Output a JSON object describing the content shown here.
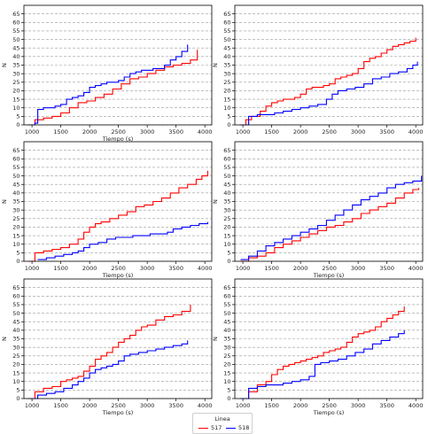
{
  "legend": {
    "title": "Linea",
    "entries": [
      {
        "name": "517",
        "color": "#ff0000"
      },
      {
        "name": "518",
        "color": "#0000ff"
      }
    ]
  },
  "chart_data": [
    {
      "type": "line",
      "xlabel": "Tiempo (s)",
      "ylabel": "N",
      "xlim": [
        860,
        4120
      ],
      "ylim": [
        0,
        70
      ],
      "xticks": [
        1000,
        1500,
        2000,
        2500,
        3000,
        3500,
        4000
      ],
      "yticks": [
        0,
        5,
        10,
        15,
        20,
        25,
        30,
        35,
        40,
        45,
        50,
        55,
        60,
        65
      ],
      "grid": "y-dashed",
      "series": [
        {
          "name": "517",
          "color": "#ff0000",
          "x": [
            920,
            1050,
            1200,
            1350,
            1500,
            1650,
            1800,
            1950,
            2100,
            2250,
            2400,
            2550,
            2700,
            2850,
            3000,
            3150,
            3300,
            3450,
            3600,
            3750,
            3870
          ],
          "y": [
            0,
            3,
            4,
            5,
            7,
            10,
            13,
            14,
            16,
            18,
            21,
            24,
            27,
            28,
            30,
            32,
            34,
            35,
            36,
            38,
            44
          ]
        },
        {
          "name": "518",
          "color": "#0000ff",
          "x": [
            960,
            1050,
            1100,
            1200,
            1300,
            1400,
            1500,
            1600,
            1700,
            1800,
            1900,
            2000,
            2100,
            2200,
            2300,
            2400,
            2500,
            2600,
            2700,
            2800,
            2900,
            3000,
            3100,
            3200,
            3300,
            3400,
            3500,
            3600,
            3700
          ],
          "y": [
            0,
            1,
            9,
            10,
            10,
            11,
            12,
            15,
            16,
            17,
            19,
            22,
            23,
            24,
            25,
            25,
            26,
            28,
            30,
            31,
            32,
            32,
            33,
            33,
            35,
            38,
            40,
            43,
            47
          ]
        }
      ]
    },
    {
      "type": "line",
      "xlabel": "",
      "ylabel": "N",
      "xlim": [
        860,
        4120
      ],
      "ylim": [
        0,
        70
      ],
      "xticks": [
        1000,
        1500,
        2000,
        2500,
        3000,
        3500,
        4000
      ],
      "yticks": [
        0,
        5,
        10,
        15,
        20,
        25,
        30,
        35,
        40,
        45,
        50,
        55,
        60,
        65
      ],
      "grid": "y-dashed",
      "series": [
        {
          "name": "517",
          "color": "#ff0000",
          "x": [
            950,
            1050,
            1150,
            1300,
            1400,
            1500,
            1600,
            1700,
            1800,
            1900,
            2000,
            2100,
            2200,
            2400,
            2500,
            2600,
            2700,
            2800,
            2900,
            3000,
            3100,
            3200,
            3300,
            3400,
            3500,
            3600,
            3700,
            3800,
            3900,
            4000
          ],
          "y": [
            0,
            3,
            5,
            8,
            11,
            13,
            14,
            15,
            15,
            16,
            18,
            21,
            22,
            23,
            24,
            27,
            28,
            29,
            30,
            33,
            37,
            39,
            40,
            42,
            44,
            46,
            47,
            48,
            49,
            51
          ]
        },
        {
          "name": "518",
          "color": "#0000ff",
          "x": [
            960,
            1100,
            1250,
            1400,
            1550,
            1700,
            1850,
            2000,
            2150,
            2300,
            2450,
            2550,
            2650,
            2800,
            2950,
            3100,
            3250,
            3400,
            3550,
            3700,
            3850,
            3950,
            4030
          ],
          "y": [
            0,
            5,
            6,
            6,
            7,
            8,
            9,
            10,
            11,
            12,
            15,
            18,
            20,
            21,
            22,
            24,
            27,
            28,
            30,
            31,
            33,
            35,
            37
          ]
        }
      ]
    },
    {
      "type": "line",
      "xlabel": "Tiempo (s)",
      "ylabel": "N",
      "xlim": [
        860,
        4120
      ],
      "ylim": [
        0,
        70
      ],
      "xticks": [
        1000,
        1500,
        2000,
        2500,
        3000,
        3500,
        4000
      ],
      "yticks": [
        0,
        5,
        10,
        15,
        20,
        25,
        30,
        35,
        40,
        45,
        50,
        55,
        60,
        65
      ],
      "grid": "y-dashed",
      "series": [
        {
          "name": "517",
          "color": "#ff0000",
          "x": [
            930,
            1050,
            1200,
            1350,
            1500,
            1650,
            1800,
            1900,
            2000,
            2100,
            2200,
            2350,
            2500,
            2650,
            2800,
            2950,
            3100,
            3250,
            3400,
            3550,
            3700,
            3850,
            3950,
            4050
          ],
          "y": [
            0,
            5,
            6,
            7,
            8,
            10,
            13,
            17,
            20,
            22,
            23,
            25,
            27,
            29,
            32,
            33,
            35,
            37,
            40,
            43,
            45,
            48,
            50,
            53
          ]
        },
        {
          "name": "518",
          "color": "#0000ff",
          "x": [
            1100,
            1250,
            1400,
            1550,
            1700,
            1800,
            1900,
            2000,
            2150,
            2300,
            2450,
            2600,
            2750,
            2900,
            3050,
            3200,
            3350,
            3450,
            3600,
            3750,
            3900,
            4050
          ],
          "y": [
            1,
            2,
            3,
            4,
            5,
            6,
            8,
            10,
            11,
            13,
            14,
            14,
            15,
            15,
            16,
            16,
            17,
            19,
            20,
            21,
            22,
            23
          ]
        }
      ]
    },
    {
      "type": "line",
      "xlabel": "Tiempo (s)",
      "ylabel": "N",
      "xlim": [
        860,
        4120
      ],
      "ylim": [
        0,
        70
      ],
      "xticks": [
        1000,
        1500,
        2000,
        2500,
        3000,
        3500,
        4000
      ],
      "yticks": [
        0,
        5,
        10,
        15,
        20,
        25,
        30,
        35,
        40,
        45,
        50,
        55,
        60,
        65
      ],
      "grid": "y-dashed",
      "series": [
        {
          "name": "517",
          "color": "#ff0000",
          "x": [
            950,
            1100,
            1250,
            1400,
            1550,
            1700,
            1850,
            2000,
            2150,
            2300,
            2450,
            2600,
            2750,
            2900,
            3050,
            3200,
            3350,
            3500,
            3650,
            3800,
            3950,
            4050
          ],
          "y": [
            0,
            2,
            3,
            5,
            8,
            10,
            12,
            14,
            16,
            18,
            20,
            21,
            23,
            25,
            28,
            30,
            32,
            34,
            37,
            40,
            42,
            43
          ]
        },
        {
          "name": "518",
          "color": "#0000ff",
          "x": [
            960,
            1100,
            1250,
            1400,
            1550,
            1700,
            1850,
            2000,
            2150,
            2300,
            2450,
            2600,
            2750,
            2900,
            3050,
            3200,
            3350,
            3500,
            3650,
            3800,
            3950,
            4100
          ],
          "y": [
            1,
            3,
            6,
            9,
            11,
            13,
            15,
            17,
            19,
            21,
            24,
            27,
            30,
            33,
            36,
            38,
            40,
            43,
            45,
            46,
            47,
            50
          ]
        }
      ]
    },
    {
      "type": "line",
      "xlabel": "Tiempo (s)",
      "ylabel": "N",
      "xlim": [
        860,
        4120
      ],
      "ylim": [
        0,
        70
      ],
      "xticks": [
        1000,
        1500,
        2000,
        2500,
        3000,
        3500,
        4000
      ],
      "yticks": [
        0,
        5,
        10,
        15,
        20,
        25,
        30,
        35,
        40,
        45,
        50,
        55,
        60,
        65
      ],
      "grid": "y-dashed",
      "series": [
        {
          "name": "517",
          "color": "#ff0000",
          "x": [
            920,
            1050,
            1200,
            1350,
            1500,
            1600,
            1700,
            1800,
            1900,
            2000,
            2100,
            2200,
            2300,
            2400,
            2500,
            2600,
            2700,
            2800,
            2900,
            3000,
            3150,
            3300,
            3450,
            3600,
            3750
          ],
          "y": [
            0,
            4,
            6,
            7,
            10,
            11,
            12,
            13,
            16,
            19,
            23,
            25,
            27,
            30,
            33,
            35,
            37,
            40,
            42,
            43,
            46,
            48,
            49,
            51,
            55
          ]
        },
        {
          "name": "518",
          "color": "#0000ff",
          "x": [
            960,
            1100,
            1250,
            1400,
            1550,
            1700,
            1800,
            1900,
            2000,
            2100,
            2200,
            2300,
            2400,
            2500,
            2600,
            2700,
            2850,
            3000,
            3150,
            3300,
            3450,
            3600,
            3700
          ],
          "y": [
            0,
            2,
            3,
            4,
            6,
            8,
            10,
            12,
            15,
            17,
            18,
            19,
            20,
            22,
            25,
            26,
            27,
            28,
            29,
            30,
            31,
            32,
            34
          ]
        }
      ]
    },
    {
      "type": "line",
      "xlabel": "Tiempo (s)",
      "ylabel": "N",
      "xlim": [
        860,
        4120
      ],
      "ylim": [
        0,
        70
      ],
      "xticks": [
        1000,
        1500,
        2000,
        2500,
        3000,
        3500,
        4000
      ],
      "yticks": [
        0,
        5,
        10,
        15,
        20,
        25,
        30,
        35,
        40,
        45,
        50,
        55,
        60,
        65
      ],
      "grid": "y-dashed",
      "series": [
        {
          "name": "517",
          "color": "#ff0000",
          "x": [
            960,
            1100,
            1250,
            1400,
            1500,
            1600,
            1700,
            1800,
            1900,
            2000,
            2100,
            2200,
            2300,
            2400,
            2500,
            2600,
            2700,
            2800,
            2900,
            3000,
            3100,
            3200,
            3300,
            3400,
            3500,
            3600,
            3700,
            3800
          ],
          "y": [
            0,
            4,
            8,
            10,
            14,
            17,
            19,
            20,
            21,
            22,
            23,
            24,
            25,
            27,
            28,
            29,
            30,
            33,
            36,
            38,
            39,
            40,
            42,
            45,
            47,
            49,
            51,
            54
          ]
        },
        {
          "name": "518",
          "color": "#0000ff",
          "x": [
            960,
            1100,
            1250,
            1400,
            1550,
            1700,
            1850,
            2000,
            2150,
            2250,
            2350,
            2500,
            2650,
            2800,
            2950,
            3100,
            3250,
            3400,
            3550,
            3700,
            3800
          ],
          "y": [
            0,
            6,
            7,
            8,
            8,
            9,
            10,
            11,
            13,
            20,
            21,
            22,
            23,
            25,
            27,
            29,
            32,
            34,
            36,
            38,
            40
          ]
        }
      ]
    }
  ]
}
